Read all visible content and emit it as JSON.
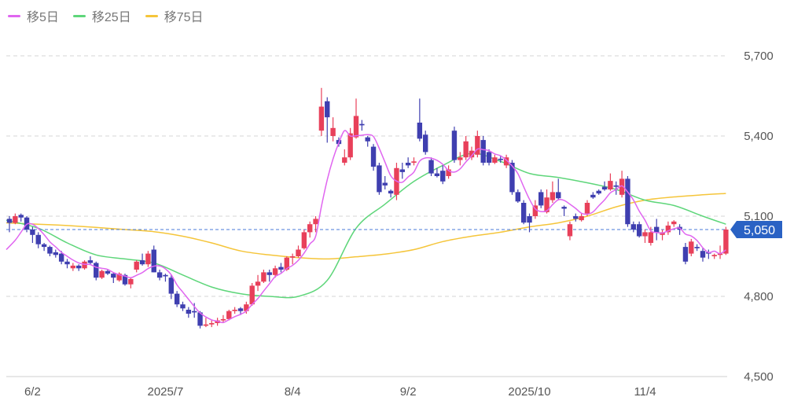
{
  "legend": [
    {
      "label": "移5日",
      "color": "#e066f0"
    },
    {
      "label": "移25日",
      "color": "#5ed67a"
    },
    {
      "label": "移75日",
      "color": "#f5c53a"
    }
  ],
  "chart_data": {
    "type": "candlestick",
    "ylim": [
      4500,
      5800
    ],
    "yticks": [
      4500,
      4800,
      5100,
      5400,
      5700
    ],
    "ytick_labels": [
      "4,500",
      "4,800",
      "5,100",
      "5,400",
      "5,700"
    ],
    "xticks": [
      {
        "index": 4,
        "label": "6/2"
      },
      {
        "index": 27,
        "label": "2025/7"
      },
      {
        "index": 49,
        "label": "8/4"
      },
      {
        "index": 69,
        "label": "9/2"
      },
      {
        "index": 90,
        "label": "2025/10"
      },
      {
        "index": 110,
        "label": "11/4"
      }
    ],
    "colors": {
      "up": "#e8405a",
      "down": "#3f3fb0",
      "last_badge": "#2a62c4",
      "last_line": "#4a7ad8"
    },
    "last_price": 5050,
    "last_price_label": "5,050",
    "candles_ohlc": [
      [
        5090,
        5100,
        5040,
        5075
      ],
      [
        5075,
        5110,
        5070,
        5100
      ],
      [
        5105,
        5110,
        5080,
        5095
      ],
      [
        5095,
        5100,
        5040,
        5050
      ],
      [
        5050,
        5060,
        5000,
        5030
      ],
      [
        5030,
        5040,
        4980,
        4995
      ],
      [
        4995,
        5000,
        4970,
        4985
      ],
      [
        4985,
        4990,
        4950,
        4960
      ],
      [
        4965,
        4975,
        4945,
        4955
      ],
      [
        4960,
        4970,
        4920,
        4930
      ],
      [
        4930,
        4940,
        4905,
        4920
      ],
      [
        4905,
        4925,
        4895,
        4915
      ],
      [
        4915,
        4920,
        4895,
        4905
      ],
      [
        4905,
        4935,
        4900,
        4930
      ],
      [
        4935,
        4950,
        4920,
        4925
      ],
      [
        4925,
        4930,
        4860,
        4870
      ],
      [
        4870,
        4900,
        4865,
        4895
      ],
      [
        4895,
        4900,
        4880,
        4885
      ],
      [
        4885,
        4890,
        4850,
        4870
      ],
      [
        4860,
        4890,
        4855,
        4885
      ],
      [
        4880,
        4885,
        4840,
        4845
      ],
      [
        4845,
        4870,
        4830,
        4865
      ],
      [
        4900,
        4935,
        4890,
        4930
      ],
      [
        4935,
        4960,
        4915,
        4920
      ],
      [
        4920,
        4970,
        4910,
        4960
      ],
      [
        4975,
        4990,
        4890,
        4890
      ],
      [
        4890,
        4900,
        4860,
        4870
      ],
      [
        4880,
        4885,
        4855,
        4875
      ],
      [
        4870,
        4880,
        4790,
        4810
      ],
      [
        4810,
        4820,
        4760,
        4770
      ],
      [
        4770,
        4780,
        4745,
        4755
      ],
      [
        4750,
        4760,
        4720,
        4735
      ],
      [
        4745,
        4775,
        4720,
        4740
      ],
      [
        4740,
        4745,
        4680,
        4690
      ],
      [
        4690,
        4720,
        4685,
        4695
      ],
      [
        4695,
        4710,
        4685,
        4700
      ],
      [
        4700,
        4720,
        4690,
        4710
      ],
      [
        4710,
        4730,
        4700,
        4715
      ],
      [
        4715,
        4750,
        4710,
        4745
      ],
      [
        4745,
        4760,
        4735,
        4750
      ],
      [
        4755,
        4760,
        4730,
        4745
      ],
      [
        4745,
        4780,
        4735,
        4770
      ],
      [
        4770,
        4850,
        4765,
        4840
      ],
      [
        4840,
        4880,
        4820,
        4855
      ],
      [
        4855,
        4900,
        4850,
        4890
      ],
      [
        4890,
        4900,
        4855,
        4880
      ],
      [
        4880,
        4915,
        4870,
        4905
      ],
      [
        4910,
        4925,
        4890,
        4900
      ],
      [
        4900,
        4950,
        4895,
        4945
      ],
      [
        4945,
        4960,
        4920,
        4950
      ],
      [
        4950,
        4990,
        4945,
        4975
      ],
      [
        4980,
        5050,
        4975,
        5040
      ],
      [
        5040,
        5080,
        5020,
        5070
      ],
      [
        5070,
        5100,
        5040,
        5090
      ],
      [
        5420,
        5580,
        5400,
        5510
      ],
      [
        5530,
        5545,
        5375,
        5470
      ],
      [
        5400,
        5470,
        5380,
        5430
      ],
      [
        5385,
        5395,
        5360,
        5370
      ],
      [
        5300,
        5350,
        5290,
        5320
      ],
      [
        5320,
        5430,
        5310,
        5410
      ],
      [
        5395,
        5540,
        5390,
        5475
      ],
      [
        5445,
        5460,
        5420,
        5440
      ],
      [
        5395,
        5400,
        5360,
        5380
      ],
      [
        5360,
        5370,
        5270,
        5285
      ],
      [
        5290,
        5300,
        5180,
        5190
      ],
      [
        5225,
        5250,
        5200,
        5215
      ],
      [
        5195,
        5200,
        5170,
        5185
      ],
      [
        5180,
        5300,
        5160,
        5280
      ],
      [
        5275,
        5300,
        5240,
        5265
      ],
      [
        5300,
        5320,
        5280,
        5290
      ],
      [
        5300,
        5320,
        5290,
        5305
      ],
      [
        5450,
        5540,
        5380,
        5390
      ],
      [
        5405,
        5420,
        5330,
        5340
      ],
      [
        5310,
        5320,
        5250,
        5260
      ],
      [
        5260,
        5280,
        5245,
        5250
      ],
      [
        5270,
        5290,
        5220,
        5230
      ],
      [
        5250,
        5290,
        5240,
        5275
      ],
      [
        5420,
        5435,
        5300,
        5310
      ],
      [
        5310,
        5340,
        5290,
        5320
      ],
      [
        5320,
        5400,
        5310,
        5380
      ],
      [
        5320,
        5360,
        5310,
        5345
      ],
      [
        5330,
        5420,
        5320,
        5400
      ],
      [
        5385,
        5400,
        5290,
        5300
      ],
      [
        5340,
        5350,
        5290,
        5300
      ],
      [
        5300,
        5330,
        5295,
        5320
      ],
      [
        5315,
        5325,
        5300,
        5310
      ],
      [
        5290,
        5330,
        5280,
        5320
      ],
      [
        5300,
        5310,
        5180,
        5190
      ],
      [
        5190,
        5200,
        5150,
        5155
      ],
      [
        5150,
        5160,
        5070,
        5076
      ],
      [
        5100,
        5110,
        5040,
        5076
      ],
      [
        5100,
        5160,
        5090,
        5140
      ],
      [
        5190,
        5200,
        5130,
        5140
      ],
      [
        5115,
        5200,
        5110,
        5170
      ],
      [
        5160,
        5230,
        5150,
        5190
      ],
      [
        5190,
        5240,
        5160,
        5167
      ],
      [
        5135,
        5140,
        5100,
        5128
      ],
      [
        5025,
        5080,
        5010,
        5070
      ],
      [
        5100,
        5110,
        5080,
        5090
      ],
      [
        5085,
        5110,
        5080,
        5100
      ],
      [
        5110,
        5160,
        5100,
        5150
      ],
      [
        5180,
        5190,
        5165,
        5170
      ],
      [
        5195,
        5200,
        5180,
        5185
      ],
      [
        5210,
        5230,
        5195,
        5200
      ],
      [
        5200,
        5260,
        5195,
        5232
      ],
      [
        5215,
        5230,
        5180,
        5210
      ],
      [
        5180,
        5270,
        5170,
        5240
      ],
      [
        5240,
        5250,
        5060,
        5070
      ],
      [
        5070,
        5080,
        5040,
        5050
      ],
      [
        5070,
        5080,
        5020,
        5025
      ],
      [
        5025,
        5050,
        5000,
        5040
      ],
      [
        5000,
        5060,
        4990,
        5040
      ],
      [
        5060,
        5090,
        5010,
        5040
      ],
      [
        5030,
        5050,
        5010,
        5040
      ],
      [
        5040,
        5080,
        5030,
        5065
      ],
      [
        5070,
        5085,
        5060,
        5080
      ],
      [
        5060,
        5070,
        5030,
        5050
      ],
      [
        4985,
        5000,
        4920,
        4930
      ],
      [
        4960,
        5015,
        4950,
        5005
      ],
      [
        4985,
        4995,
        4970,
        4980
      ],
      [
        4970,
        4980,
        4930,
        4945
      ],
      [
        4965,
        4975,
        4940,
        4960
      ],
      [
        4950,
        4960,
        4940,
        4955
      ],
      [
        4955,
        4990,
        4940,
        4960
      ],
      [
        4960,
        5060,
        4955,
        5050
      ]
    ],
    "ma5_leading": [
      4975,
      5010,
      5040,
      5070
    ],
    "ma_sample_step": 5,
    "ma25_sampled": [
      5085,
      5055,
      5000,
      4955,
      4940,
      4925,
      4880,
      4835,
      4810,
      4800,
      4800,
      4860,
      5055,
      5145,
      5230,
      5290,
      5335,
      5305,
      5260,
      5245,
      5225,
      5200,
      5160,
      5140,
      5100,
      5070
    ],
    "ma75_sampled": [
      5075,
      5070,
      5065,
      5058,
      5050,
      5042,
      5025,
      5000,
      4970,
      4955,
      4945,
      4940,
      4948,
      4958,
      4975,
      5005,
      5025,
      5040,
      5060,
      5075,
      5100,
      5135,
      5160,
      5172,
      5180,
      5185
    ]
  }
}
